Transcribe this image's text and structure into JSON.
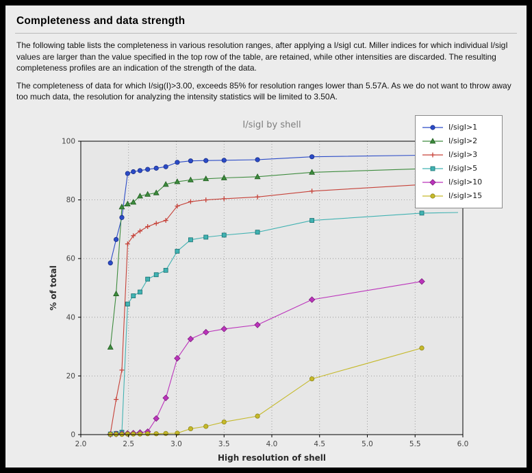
{
  "header": {
    "title": "Completeness and data strength"
  },
  "body": {
    "paragraph1": "The following table lists the completeness in various resolution ranges, after applying a I/sigI cut. Miller indices for which individual I/sigI values are larger than the value specified in the top row of the table, are retained, while other intensities are discarded. The resulting completeness profiles are an indication of the strength of the data.",
    "paragraph2": "The completeness of data for which I/sig(I)>3.00, exceeds  85% for resolution ranges lower than 5.57A. As we do not want to throw away too much data, the resolution for analyzing the intensity statistics will be limited to 3.50A."
  },
  "chart_data": {
    "type": "line",
    "title": "I/sigI by shell",
    "xlabel": "High resolution of shell",
    "ylabel": "% of total",
    "xlim": [
      2.0,
      6.0
    ],
    "ylim": [
      0,
      100
    ],
    "xticks": [
      2.0,
      2.5,
      3.0,
      3.5,
      4.0,
      4.5,
      5.0,
      5.5,
      6.0
    ],
    "yticks": [
      0,
      20,
      40,
      60,
      80,
      100
    ],
    "grid": "dotted",
    "legend_position": "upper-right",
    "plot_bg": "#e7e7e7",
    "page_bg": "#ececec",
    "x": [
      2.31,
      2.37,
      2.43,
      2.49,
      2.55,
      2.62,
      2.7,
      2.79,
      2.89,
      3.01,
      3.15,
      3.31,
      3.5,
      3.85,
      4.42,
      5.57
    ],
    "series": [
      {
        "name": "I/sigI>1",
        "color": "#2b4bc7",
        "edge": "#1a2e86",
        "marker": "circle",
        "values": [
          58.5,
          66.5,
          74.0,
          89.0,
          89.6,
          90.0,
          90.4,
          90.8,
          91.3,
          92.8,
          93.3,
          93.4,
          93.5,
          93.7,
          94.7,
          95.2
        ],
        "extend": {
          "x": 5.95,
          "y": 95.4
        }
      },
      {
        "name": "I/sigI>2",
        "color": "#3d8b3d",
        "edge": "#1f5c1f",
        "marker": "triangle",
        "values": [
          29.8,
          48.0,
          77.6,
          78.6,
          79.2,
          81.3,
          81.9,
          82.4,
          85.3,
          86.2,
          86.8,
          87.2,
          87.5,
          87.9,
          89.4,
          90.6
        ],
        "extend": {
          "x": 5.95,
          "y": 90.9
        }
      },
      {
        "name": "I/sigI>3",
        "color": "#c64138",
        "edge": "#8c2420",
        "marker": "plus",
        "values": [
          0.3,
          12.0,
          22.0,
          65.0,
          67.8,
          69.4,
          70.9,
          72.0,
          73.0,
          77.9,
          79.4,
          80.0,
          80.4,
          81.0,
          83.0,
          85.2
        ],
        "extend": {
          "x": 5.95,
          "y": 85.5
        }
      },
      {
        "name": "I/sigI>5",
        "color": "#41b2b2",
        "edge": "#157070",
        "marker": "square",
        "values": [
          0.2,
          0.4,
          0.8,
          44.5,
          47.3,
          48.6,
          53.0,
          54.5,
          56.0,
          62.5,
          66.4,
          67.3,
          68.0,
          69.0,
          73.0,
          75.5
        ],
        "extend": {
          "x": 5.95,
          "y": 75.7
        }
      },
      {
        "name": "I/sigI>10",
        "color": "#bb33bb",
        "edge": "#7d1f7d",
        "marker": "diamond",
        "values": [
          0.1,
          0.2,
          0.3,
          0.4,
          0.5,
          0.7,
          1.0,
          5.5,
          12.5,
          26.0,
          32.6,
          34.9,
          36.0,
          37.4,
          46.0,
          52.2
        ]
      },
      {
        "name": "I/sigI>15",
        "color": "#c5b92a",
        "edge": "#8f861b",
        "marker": "circle",
        "values": [
          0.1,
          0.1,
          0.1,
          0.2,
          0.2,
          0.2,
          0.3,
          0.3,
          0.4,
          0.5,
          2.0,
          2.8,
          4.3,
          6.3,
          19.0,
          29.5
        ]
      }
    ]
  }
}
